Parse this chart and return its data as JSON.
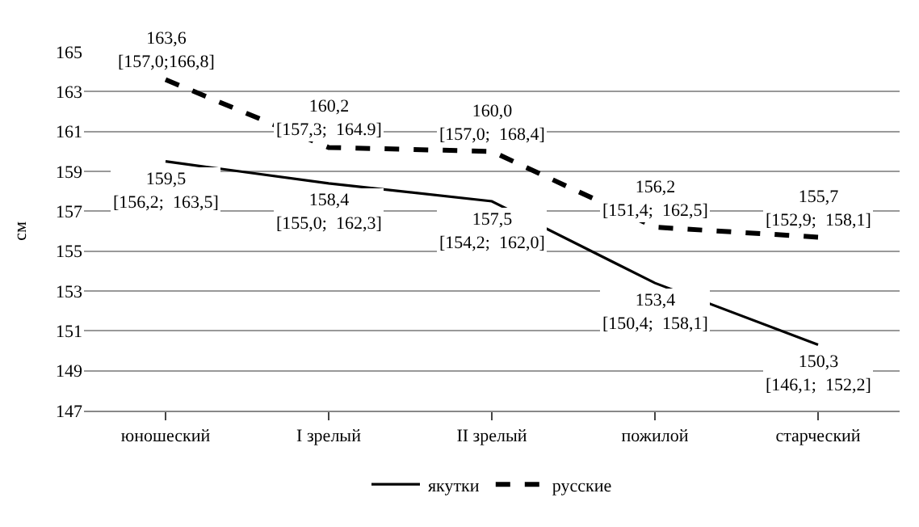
{
  "chart_data": {
    "type": "line",
    "ylabel": "см",
    "categories": [
      "юношеский",
      "I зрелый",
      "II зрелый",
      "пожилой",
      "старческий"
    ],
    "series": [
      {
        "name": "якутки",
        "color": "#000000",
        "line_style": "solid",
        "values": [
          159.5,
          158.4,
          157.5,
          153.4,
          150.3
        ],
        "value_labels": [
          "159,5\n[156,2;  163,5]",
          "158,4\n[155,0;  162,3]",
          "157,5\n[154,2;  162,0]",
          "153,4\n[150,4;  158,1]",
          "150,3\n[146,1;  152,2]"
        ]
      },
      {
        "name": "русские",
        "color": "#000000",
        "line_style": "dashed",
        "values": [
          163.6,
          160.2,
          160.0,
          156.2,
          155.7
        ],
        "value_labels": [
          "163,6\n[157,0;166,8]",
          "160,2\n[157,3;  164.9]",
          "160,0\n[157,0;  168,4]",
          "156,2\n[151,4;  162,5]",
          "155,7\n[152,9;  158,1]"
        ]
      }
    ],
    "ylim": [
      147,
      165
    ],
    "yticks": [
      147,
      149,
      151,
      153,
      155,
      157,
      159,
      161,
      163,
      165
    ],
    "grid": "y",
    "legend": "bottom"
  }
}
